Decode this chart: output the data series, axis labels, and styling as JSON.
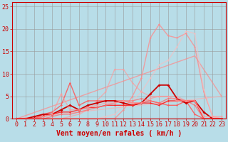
{
  "background_color": "#b8dde8",
  "grid_color": "#999999",
  "xlabel": "Vent moyen/en rafales ( km/h )",
  "xlabel_color": "#cc0000",
  "xlabel_fontsize": 7,
  "tick_color": "#cc0000",
  "tick_fontsize": 6,
  "xlim": [
    -0.5,
    23.5
  ],
  "ylim": [
    0,
    26
  ],
  "yticks": [
    0,
    5,
    10,
    15,
    20,
    25
  ],
  "xticks": [
    0,
    1,
    2,
    3,
    4,
    5,
    6,
    7,
    8,
    9,
    10,
    11,
    12,
    13,
    14,
    15,
    16,
    17,
    18,
    19,
    20,
    21,
    22,
    23
  ],
  "series": [
    {
      "x": [
        0,
        5,
        10,
        15,
        20,
        23
      ],
      "y": [
        0,
        3.5,
        7,
        10.5,
        14,
        5
      ],
      "color": "#ff8888",
      "alpha": 0.7,
      "lw": 1.0,
      "marker": null,
      "ms": 0
    },
    {
      "x": [
        0,
        23
      ],
      "y": [
        0,
        5
      ],
      "color": "#ffaaaa",
      "alpha": 0.6,
      "lw": 1.0,
      "marker": null,
      "ms": 0
    },
    {
      "x": [
        0,
        1,
        2,
        3,
        4,
        5,
        6,
        7,
        8,
        9,
        10,
        11,
        12,
        13,
        14,
        15,
        16,
        17,
        18,
        19,
        20,
        21,
        22,
        23
      ],
      "y": [
        0,
        0,
        0,
        0,
        0,
        0,
        0,
        0,
        0,
        0,
        0,
        0,
        2,
        5,
        9,
        18,
        21,
        18.5,
        18,
        19,
        16,
        6,
        0.5,
        0
      ],
      "color": "#ff8888",
      "alpha": 0.75,
      "lw": 1.0,
      "marker": "D",
      "ms": 1.5
    },
    {
      "x": [
        0,
        1,
        2,
        3,
        4,
        5,
        6,
        7,
        8,
        9,
        10,
        11,
        12,
        13,
        14,
        15,
        16,
        17,
        18,
        19,
        20,
        21,
        22,
        23
      ],
      "y": [
        0,
        0,
        0,
        0,
        0,
        0,
        0,
        0,
        0,
        0,
        0.5,
        1,
        3,
        4,
        6,
        9,
        12,
        13,
        16,
        19.5,
        19,
        6.5,
        0.5,
        0
      ],
      "color": "#ffbbbb",
      "alpha": 0.6,
      "lw": 1.0,
      "marker": "D",
      "ms": 1.5
    },
    {
      "x": [
        0,
        1,
        2,
        3,
        4,
        5,
        6,
        7,
        8,
        9,
        10,
        11,
        12,
        13,
        14,
        15,
        16,
        17,
        18,
        19,
        20,
        21,
        22,
        23
      ],
      "y": [
        0,
        0,
        0,
        0,
        0,
        0,
        0.5,
        1,
        2,
        4,
        6,
        11,
        11,
        8,
        6,
        5,
        5,
        5,
        5,
        4,
        4,
        0,
        0,
        0
      ],
      "color": "#ff9999",
      "alpha": 0.65,
      "lw": 1.0,
      "marker": "D",
      "ms": 1.5
    },
    {
      "x": [
        0,
        1,
        2,
        3,
        4,
        5,
        6,
        7,
        8,
        9,
        10,
        11,
        12,
        13,
        14,
        15,
        16,
        17,
        18,
        19,
        20,
        21,
        22,
        23
      ],
      "y": [
        0,
        0,
        0,
        1,
        1.5,
        3,
        8,
        3,
        4,
        4,
        4,
        4,
        4,
        3.5,
        3.5,
        4,
        3.5,
        3,
        3,
        4,
        1,
        0,
        0,
        0
      ],
      "color": "#ff5555",
      "alpha": 0.85,
      "lw": 1.0,
      "marker": "D",
      "ms": 1.5
    },
    {
      "x": [
        0,
        1,
        2,
        3,
        4,
        5,
        6,
        7,
        8,
        9,
        10,
        11,
        12,
        13,
        14,
        15,
        16,
        17,
        18,
        19,
        20,
        21,
        22,
        23
      ],
      "y": [
        0,
        0,
        0.5,
        1,
        1,
        2,
        3,
        2,
        3,
        3.5,
        4,
        4,
        3.5,
        3,
        3.5,
        5.5,
        7.5,
        7.5,
        4.5,
        3.5,
        4,
        1.5,
        0,
        0
      ],
      "color": "#cc0000",
      "alpha": 1.0,
      "lw": 1.3,
      "marker": "D",
      "ms": 2.0
    },
    {
      "x": [
        0,
        1,
        2,
        3,
        4,
        5,
        6,
        7,
        8,
        9,
        10,
        11,
        12,
        13,
        14,
        15,
        16,
        17,
        18,
        19,
        20,
        21,
        22,
        23
      ],
      "y": [
        0,
        0,
        0,
        0.5,
        1,
        1.5,
        1.5,
        2,
        2.5,
        2.5,
        3,
        3,
        3,
        3,
        3.5,
        3.5,
        3,
        4,
        4,
        4,
        4,
        0,
        0,
        0
      ],
      "color": "#ff2222",
      "alpha": 0.9,
      "lw": 1.0,
      "marker": "D",
      "ms": 1.5
    },
    {
      "x": [
        0,
        1,
        2,
        3,
        4,
        5,
        6,
        7,
        8,
        9,
        10,
        11,
        12,
        13,
        14,
        15,
        16,
        17,
        18,
        19,
        20,
        21,
        22,
        23
      ],
      "y": [
        0,
        0,
        0,
        0,
        0.5,
        1,
        1,
        1.5,
        2,
        2.5,
        3,
        3.5,
        4,
        4,
        4.5,
        4,
        3.5,
        4.5,
        4.5,
        4,
        3,
        0,
        0,
        0
      ],
      "color": "#ff6666",
      "alpha": 0.7,
      "lw": 1.0,
      "marker": "D",
      "ms": 1.5
    },
    {
      "x": [
        0,
        1,
        2,
        3,
        4,
        5,
        6,
        7,
        8,
        9,
        10,
        11,
        12,
        13,
        14,
        15,
        16,
        17,
        18,
        19,
        20,
        21,
        22,
        23
      ],
      "y": [
        0,
        0,
        0,
        0.5,
        1,
        5.5,
        2,
        2,
        2.5,
        3,
        3.5,
        3.5,
        4,
        3.5,
        3.5,
        4.5,
        5,
        5,
        4,
        4,
        4,
        0.5,
        0.5,
        0.5
      ],
      "color": "#ff9999",
      "alpha": 0.75,
      "lw": 1.0,
      "marker": "D",
      "ms": 1.5
    }
  ],
  "spine_color": "#cc0000"
}
